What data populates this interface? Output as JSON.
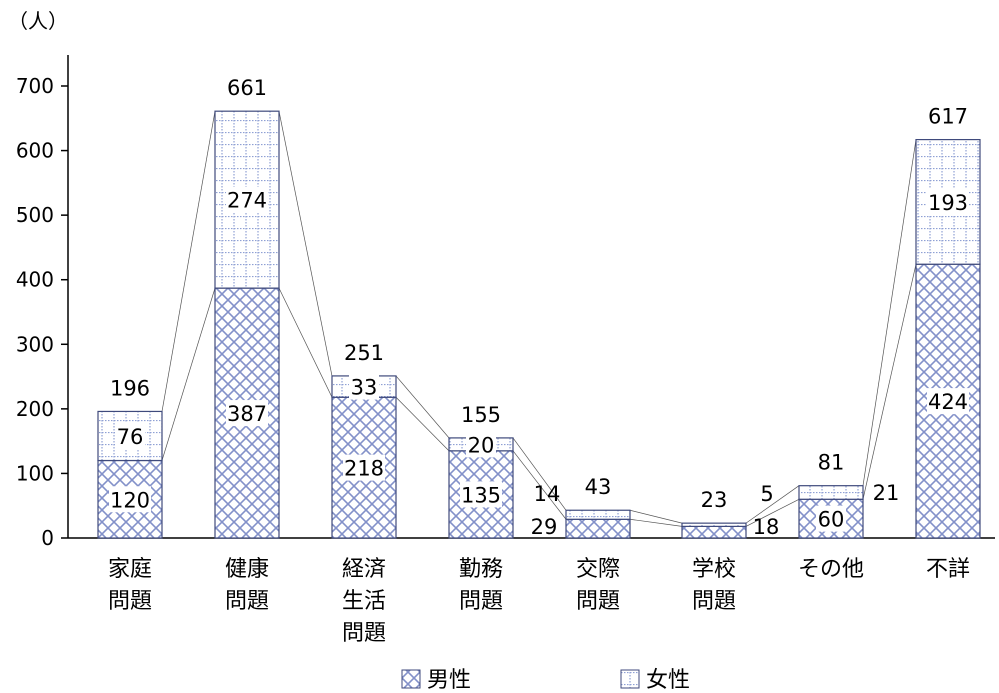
{
  "chart_data": {
    "type": "bar",
    "stacked": true,
    "unit_label": "（人）",
    "categories": [
      [
        "家庭",
        "問題"
      ],
      [
        "健康",
        "問題"
      ],
      [
        "経済",
        "生活",
        "問題"
      ],
      [
        "勤務",
        "問題"
      ],
      [
        "交際",
        "問題"
      ],
      [
        "学校",
        "問題"
      ],
      [
        "その他"
      ],
      [
        "不詳"
      ]
    ],
    "series": [
      {
        "name": "男性",
        "values": [
          120,
          387,
          218,
          135,
          29,
          18,
          60,
          424
        ]
      },
      {
        "name": "女性",
        "values": [
          76,
          274,
          33,
          20,
          14,
          5,
          21,
          193
        ]
      }
    ],
    "totals": [
      196,
      661,
      251,
      155,
      43,
      23,
      81,
      617
    ],
    "ylim": [
      0,
      700
    ],
    "yticks": [
      0,
      100,
      200,
      300,
      400,
      500,
      600,
      700
    ],
    "grid": false,
    "legend_position": "bottom",
    "colors": {
      "stroke": "#3f4a7c",
      "male_pattern": "#8c9ccf",
      "female_pattern": "#8c9ccf"
    }
  }
}
